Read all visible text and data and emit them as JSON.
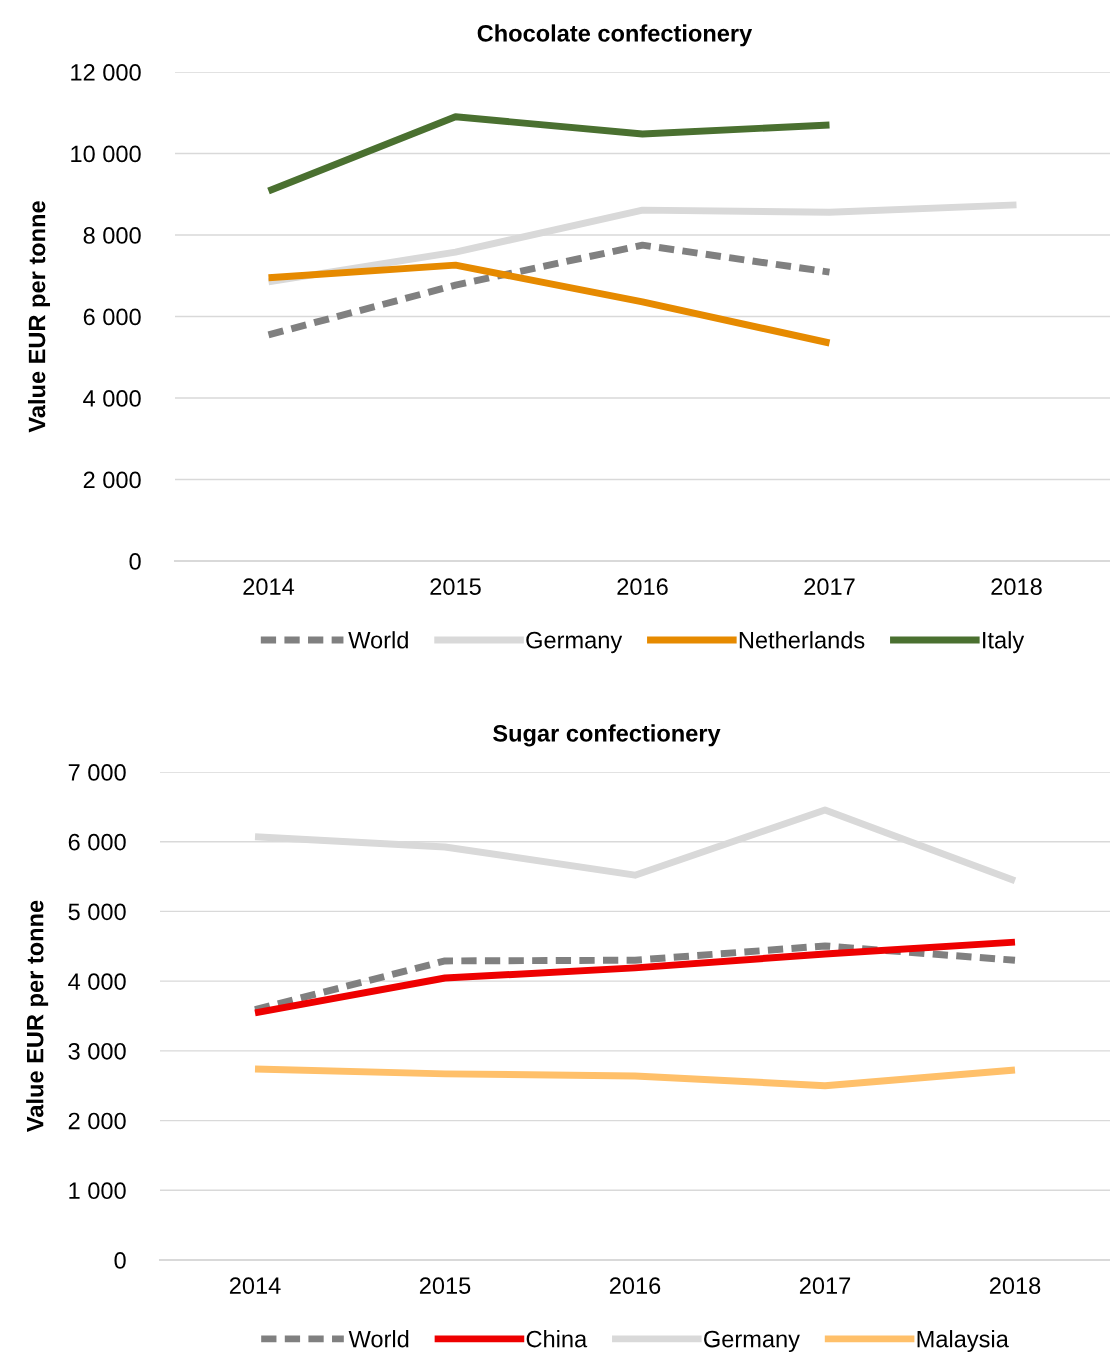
{
  "chart_data": [
    {
      "type": "line",
      "title": "Chocolate confectionery",
      "ylabel": "Value EUR per tonne",
      "categories": [
        "2014",
        "2015",
        "2016",
        "2017",
        "2018"
      ],
      "ylim": [
        0,
        12000
      ],
      "yticks": [
        0,
        {
          "value": 2000,
          "label": "2 000"
        },
        {
          "value": 4000,
          "label": "4 000"
        },
        {
          "value": 6000,
          "label": "6 000"
        },
        {
          "value": 8000,
          "label": "8 000"
        },
        {
          "value": 10000,
          "label": "10 000"
        },
        {
          "value": 12000,
          "label": "12 000"
        }
      ],
      "grid": "y",
      "legend": "bottom",
      "marker": "none",
      "series": [
        {
          "name": "World",
          "color": "#808080",
          "line_style": "dashed",
          "values": [
            5550,
            6770,
            7750,
            7090,
            null
          ]
        },
        {
          "name": "Germany",
          "color": "#d9d9d9",
          "values": [
            6850,
            7580,
            8610,
            8560,
            8740
          ]
        },
        {
          "name": "Netherlands",
          "color": "#e68a00",
          "values": [
            6950,
            7260,
            6360,
            5350,
            null
          ]
        },
        {
          "name": "Italy",
          "color": "#4a7030",
          "values": [
            9080,
            10900,
            10480,
            10700,
            null
          ]
        }
      ]
    },
    {
      "type": "line",
      "title": "Sugar confectionery",
      "ylabel": "Value EUR per tonne",
      "categories": [
        "2014",
        "2015",
        "2016",
        "2017",
        "2018"
      ],
      "ylim": [
        0,
        7000
      ],
      "yticks": [
        0,
        {
          "value": 1000,
          "label": "1 000"
        },
        {
          "value": 2000,
          "label": "2 000"
        },
        {
          "value": 3000,
          "label": "3 000"
        },
        {
          "value": 4000,
          "label": "4 000"
        },
        {
          "value": 5000,
          "label": "5 000"
        },
        {
          "value": 6000,
          "label": "6 000"
        },
        {
          "value": 7000,
          "label": "7 000"
        }
      ],
      "grid": "y",
      "legend": "bottom",
      "marker": "none",
      "series": [
        {
          "name": "World",
          "color": "#808080",
          "line_style": "dashed",
          "values": [
            3590,
            4290,
            4300,
            4505,
            4300
          ]
        },
        {
          "name": "China",
          "color": "#ee0000",
          "values": [
            3545,
            4045,
            4190,
            4390,
            4560
          ]
        },
        {
          "name": "Germany",
          "color": "#d9d9d9",
          "values": [
            6070,
            5925,
            5520,
            6455,
            5440
          ]
        },
        {
          "name": "Malaysia",
          "color": "#ffc06a",
          "values": [
            2740,
            2670,
            2640,
            2500,
            2725
          ]
        }
      ]
    }
  ]
}
